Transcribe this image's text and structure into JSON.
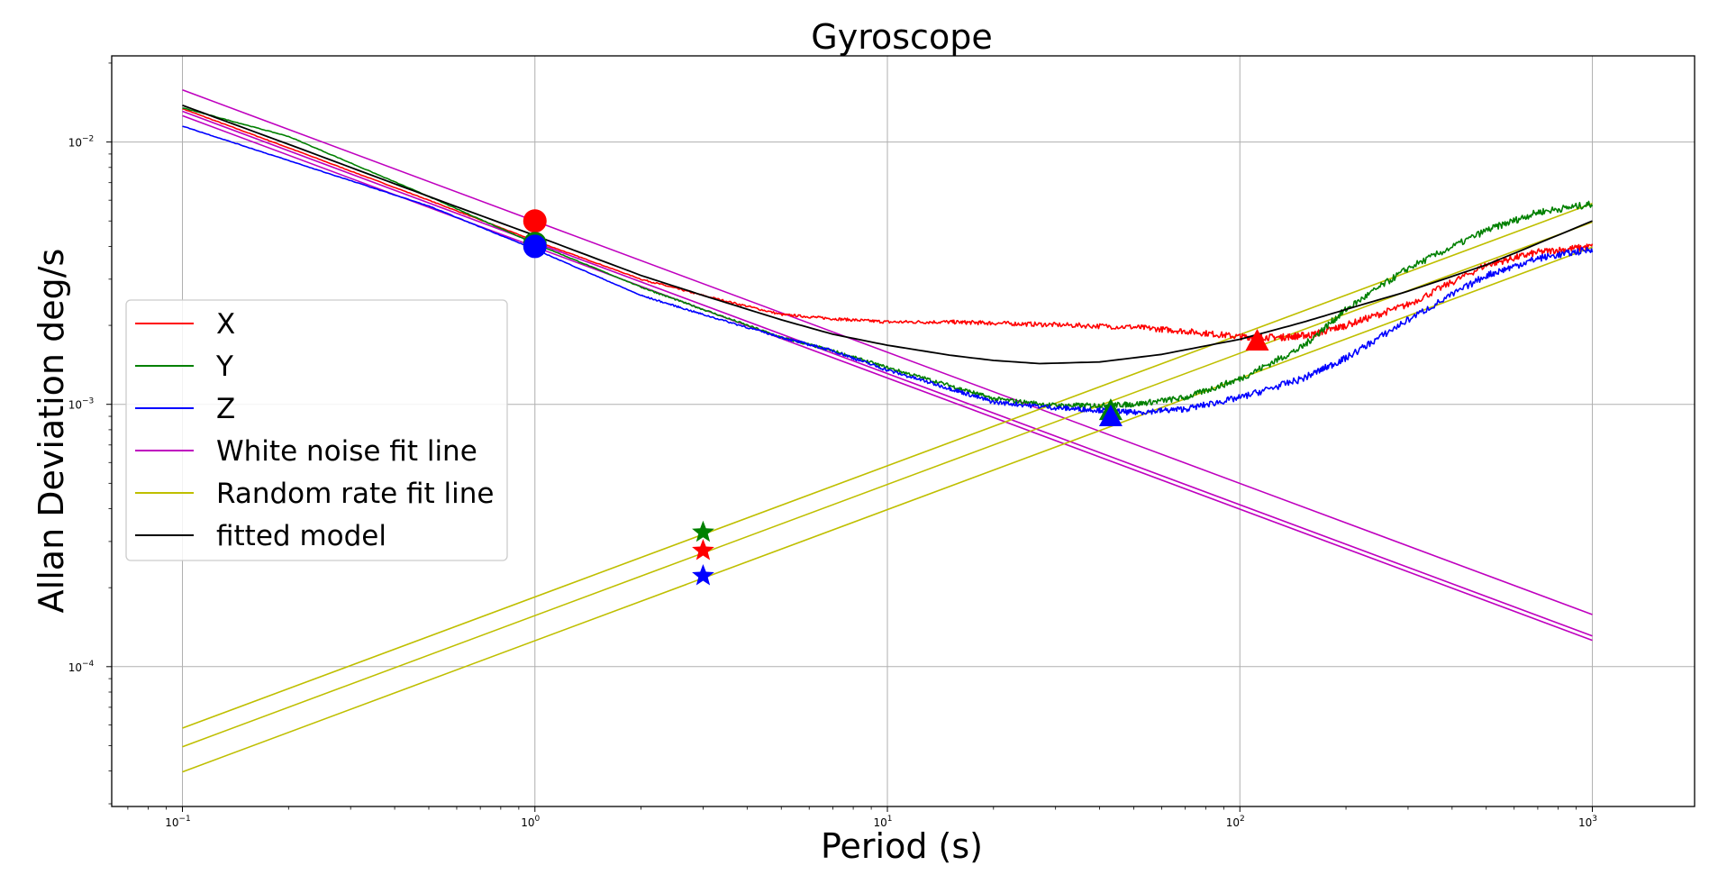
{
  "chart_data": {
    "type": "line",
    "title": "Gyroscope",
    "xlabel": "Period (s)",
    "ylabel": "Allan Deviation deg/s",
    "xscale": "log",
    "yscale": "log",
    "xlim": [
      0.063,
      1950
    ],
    "ylim": [
      2.93e-05,
      0.0213
    ],
    "grid": true,
    "legend_position": "upper-left",
    "x_ticks": [
      {
        "base": "10",
        "exp": "−1",
        "value": 0.1
      },
      {
        "base": "10",
        "exp": "0",
        "value": 1
      },
      {
        "base": "10",
        "exp": "1",
        "value": 10
      },
      {
        "base": "10",
        "exp": "2",
        "value": 100
      },
      {
        "base": "10",
        "exp": "3",
        "value": 1000
      }
    ],
    "y_ticks": [
      {
        "base": "10",
        "exp": "−2",
        "value": 0.01
      },
      {
        "base": "10",
        "exp": "−3",
        "value": 0.001
      },
      {
        "base": "10",
        "exp": "−4",
        "value": 0.0001
      }
    ],
    "series": [
      {
        "name": "X",
        "color": "#ff0000",
        "kind": "measured",
        "x": [
          0.1,
          0.2,
          0.5,
          1,
          2,
          3,
          5,
          7,
          10,
          15,
          20,
          30,
          50,
          70,
          100,
          130,
          160,
          200,
          300,
          500,
          700,
          1000
        ],
        "y": [
          0.0134,
          0.0095,
          0.006,
          0.0042,
          0.003,
          0.0026,
          0.0022,
          0.00212,
          0.00206,
          0.00206,
          0.00204,
          0.00201,
          0.00197,
          0.0019,
          0.00181,
          0.0018,
          0.00184,
          0.002,
          0.0024,
          0.0034,
          0.0038,
          0.004
        ]
      },
      {
        "name": "Y",
        "color": "#008000",
        "kind": "measured",
        "x": [
          0.1,
          0.2,
          0.5,
          1,
          2,
          3,
          5,
          7,
          10,
          15,
          20,
          30,
          40,
          50,
          70,
          100,
          150,
          200,
          300,
          500,
          700,
          1000
        ],
        "y": [
          0.0135,
          0.0105,
          0.0062,
          0.0041,
          0.0028,
          0.0023,
          0.0018,
          0.0016,
          0.00138,
          0.00118,
          0.00105,
          0.00099,
          0.00099,
          0.001,
          0.00106,
          0.00125,
          0.00165,
          0.0023,
          0.0033,
          0.0046,
          0.0054,
          0.0058
        ]
      },
      {
        "name": "Z",
        "color": "#0000ff",
        "kind": "measured",
        "x": [
          0.1,
          0.2,
          0.5,
          1,
          2,
          3,
          5,
          7,
          10,
          15,
          20,
          30,
          40,
          50,
          70,
          100,
          150,
          200,
          300,
          500,
          700,
          1000
        ],
        "y": [
          0.0115,
          0.0085,
          0.0057,
          0.0039,
          0.0026,
          0.0022,
          0.0018,
          0.0016,
          0.00135,
          0.00115,
          0.00102,
          0.00097,
          0.00095,
          0.00093,
          0.00096,
          0.00106,
          0.00125,
          0.0015,
          0.0021,
          0.0031,
          0.0036,
          0.0039
        ]
      },
      {
        "name": "White noise fit line",
        "color": "#bf00bf",
        "kind": "fit",
        "lines": [
          {
            "x": [
              0.1,
              1000
            ],
            "y": [
              0.0158,
              0.000158
            ]
          },
          {
            "x": [
              0.1,
              1000
            ],
            "y": [
              0.0131,
              0.000131
            ]
          },
          {
            "x": [
              0.1,
              1000
            ],
            "y": [
              0.0126,
              0.000126
            ]
          }
        ]
      },
      {
        "name": "Random rate fit line",
        "color": "#bfbf00",
        "kind": "fit",
        "lines": [
          {
            "x": [
              0.1,
              1000
            ],
            "y": [
              5.83e-05,
              0.00583
            ]
          },
          {
            "x": [
              0.1,
              1000
            ],
            "y": [
              4.95e-05,
              0.00495
            ]
          },
          {
            "x": [
              0.1,
              1000
            ],
            "y": [
              3.97e-05,
              0.00397
            ]
          }
        ]
      },
      {
        "name": "fitted model",
        "color": "#000000",
        "kind": "model",
        "x": [
          0.1,
          0.2,
          0.5,
          1,
          2,
          3,
          5,
          7,
          10,
          15,
          20,
          27,
          40,
          60,
          100,
          150,
          200,
          300,
          500,
          1000
        ],
        "y": [
          0.0138,
          0.0098,
          0.0062,
          0.0044,
          0.0031,
          0.0026,
          0.0021,
          0.00185,
          0.00168,
          0.00154,
          0.00147,
          0.00143,
          0.00145,
          0.00155,
          0.00177,
          0.00205,
          0.0023,
          0.0027,
          0.0034,
          0.005
        ]
      }
    ],
    "markers": [
      {
        "series": "X",
        "shape": "circle",
        "x": 1,
        "y": 0.005,
        "color": "#ff0000"
      },
      {
        "series": "Y",
        "shape": "circle",
        "x": 1,
        "y": 0.0041,
        "color": "#008000"
      },
      {
        "series": "Z",
        "shape": "circle",
        "x": 1,
        "y": 0.004,
        "color": "#0000ff"
      },
      {
        "series": "Y",
        "shape": "star",
        "x": 3,
        "y": 0.000325,
        "color": "#008000"
      },
      {
        "series": "X",
        "shape": "star",
        "x": 3,
        "y": 0.000277,
        "color": "#ff0000"
      },
      {
        "series": "Z",
        "shape": "star",
        "x": 3,
        "y": 0.000222,
        "color": "#0000ff"
      },
      {
        "series": "X",
        "shape": "triangle",
        "x": 112,
        "y": 0.00175,
        "color": "#ff0000"
      },
      {
        "series": "Y",
        "shape": "triangle",
        "x": 43,
        "y": 0.00095,
        "color": "#008000"
      },
      {
        "series": "Z",
        "shape": "triangle",
        "x": 43,
        "y": 0.0009,
        "color": "#0000ff"
      }
    ],
    "legend": [
      {
        "label": "X",
        "color": "#ff0000"
      },
      {
        "label": "Y",
        "color": "#008000"
      },
      {
        "label": "Z",
        "color": "#0000ff"
      },
      {
        "label": "White noise fit line",
        "color": "#bf00bf"
      },
      {
        "label": "Random rate fit line",
        "color": "#bfbf00"
      },
      {
        "label": "fitted model",
        "color": "#000000"
      }
    ]
  }
}
